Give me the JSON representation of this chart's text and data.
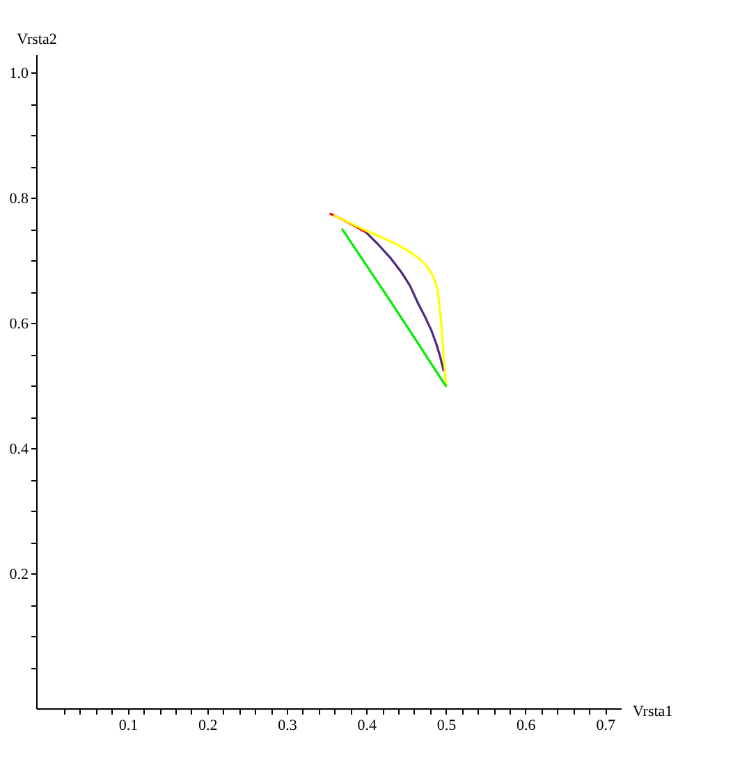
{
  "chart_data": {
    "type": "line",
    "xlabel": "Vrsta1",
    "ylabel": "Vrsta2",
    "xlim": [
      -0.015,
      0.72
    ],
    "ylim": [
      -0.015,
      1.03
    ],
    "xticks": [
      {
        "value": 0.02,
        "label": null
      },
      {
        "value": 0.04,
        "label": null
      },
      {
        "value": 0.06,
        "label": null
      },
      {
        "value": 0.08,
        "label": null
      },
      0.1,
      {
        "value": 0.12,
        "label": null
      },
      {
        "value": 0.14,
        "label": null
      },
      {
        "value": 0.16,
        "label": null
      },
      {
        "value": 0.18,
        "label": null
      },
      0.2,
      {
        "value": 0.22,
        "label": null
      },
      {
        "value": 0.24,
        "label": null
      },
      {
        "value": 0.26,
        "label": null
      },
      {
        "value": 0.28,
        "label": null
      },
      0.3,
      {
        "value": 0.32,
        "label": null
      },
      {
        "value": 0.34,
        "label": null
      },
      {
        "value": 0.36,
        "label": null
      },
      {
        "value": 0.38,
        "label": null
      },
      0.4,
      {
        "value": 0.42,
        "label": null
      },
      {
        "value": 0.44,
        "label": null
      },
      {
        "value": 0.46,
        "label": null
      },
      {
        "value": 0.48,
        "label": null
      },
      0.5,
      {
        "value": 0.52,
        "label": null
      },
      {
        "value": 0.54,
        "label": null
      },
      {
        "value": 0.56,
        "label": null
      },
      {
        "value": 0.58,
        "label": null
      },
      0.6,
      {
        "value": 0.62,
        "label": null
      },
      {
        "value": 0.64,
        "label": null
      },
      {
        "value": 0.66,
        "label": null
      },
      {
        "value": 0.68,
        "label": null
      },
      0.7
    ],
    "yticks": [
      {
        "value": 0.05,
        "label": null
      },
      {
        "value": 0.1,
        "label": null
      },
      {
        "value": 0.15,
        "label": null
      },
      0.2,
      {
        "value": 0.25,
        "label": null
      },
      {
        "value": 0.3,
        "label": null
      },
      {
        "value": 0.35,
        "label": null
      },
      0.4,
      {
        "value": 0.45,
        "label": null
      },
      {
        "value": 0.5,
        "label": null
      },
      {
        "value": 0.55,
        "label": null
      },
      0.6,
      {
        "value": 0.65,
        "label": null
      },
      {
        "value": 0.7,
        "label": null
      },
      {
        "value": 0.75,
        "label": null
      },
      0.8,
      {
        "value": 0.85,
        "label": null
      },
      {
        "value": 0.9,
        "label": null
      },
      {
        "value": 0.95,
        "label": null
      },
      {
        "value": 1.0,
        "label": "1.0"
      }
    ],
    "series": [
      {
        "color": "#ff0000",
        "x": [
          0.355,
          0.37,
          0.385,
          0.4
        ],
        "values": [
          0.775,
          0.766,
          0.756,
          0.745
        ]
      },
      {
        "color": "#4b2a80",
        "x": [
          0.4,
          0.415,
          0.43,
          0.445,
          0.455,
          0.465,
          0.474,
          0.482,
          0.488,
          0.493,
          0.497
        ],
        "values": [
          0.745,
          0.726,
          0.705,
          0.68,
          0.66,
          0.632,
          0.61,
          0.588,
          0.567,
          0.546,
          0.525
        ]
      },
      {
        "color": "#ffff00",
        "x": [
          0.36,
          0.38,
          0.4,
          0.42,
          0.44,
          0.455,
          0.465,
          0.475,
          0.482,
          0.487,
          0.49,
          0.494,
          0.497,
          0.499,
          0.5
        ],
        "values": [
          0.772,
          0.76,
          0.748,
          0.737,
          0.725,
          0.714,
          0.705,
          0.693,
          0.68,
          0.665,
          0.65,
          0.602,
          0.55,
          0.52,
          0.5
        ]
      },
      {
        "color": "#00ee00",
        "x": [
          0.37,
          0.4,
          0.43,
          0.46,
          0.49,
          0.5
        ],
        "values": [
          0.75,
          0.693,
          0.636,
          0.578,
          0.519,
          0.5
        ]
      }
    ]
  }
}
